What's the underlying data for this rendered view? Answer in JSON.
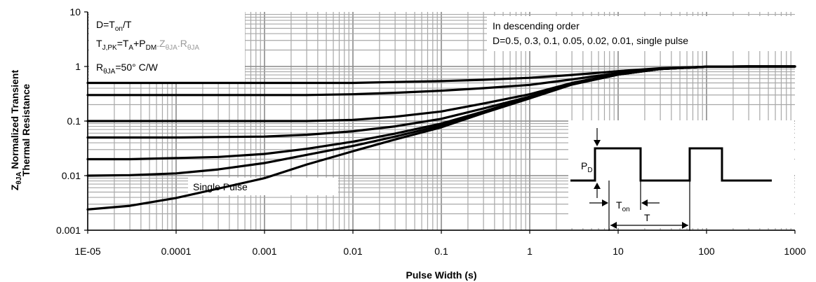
{
  "chart_data": {
    "type": "line",
    "xscale": "log",
    "yscale": "log",
    "xlim": [
      1e-05,
      1000
    ],
    "ylim": [
      0.001,
      10
    ],
    "grid": true,
    "xlabel": "Pulse Width (s)",
    "ylabel_line1": "Normalized Transient",
    "ylabel_line2": "Thermal Resistance",
    "ylabel_prefix": "Z",
    "ylabel_prefix_sub": "θJA",
    "x_tick_labels": [
      "1E-05",
      "0.0001",
      "0.001",
      "0.01",
      "0.1",
      "1",
      "10",
      "100",
      "1000"
    ],
    "y_tick_labels": [
      "0.001",
      "0.01",
      "0.1",
      "1",
      "10"
    ],
    "series_x": [
      1e-05,
      3e-05,
      0.0001,
      0.0003,
      0.001,
      0.003,
      0.01,
      0.03,
      0.1,
      0.3,
      1,
      3,
      10,
      30,
      100,
      300,
      1000
    ],
    "series": [
      {
        "values": [
          0.5,
          0.5,
          0.5,
          0.5,
          0.5,
          0.5,
          0.5,
          0.52,
          0.54,
          0.57,
          0.62,
          0.7,
          0.82,
          0.93,
          0.99,
          1.0,
          1.0
        ]
      },
      {
        "values": [
          0.3,
          0.3,
          0.3,
          0.3,
          0.3,
          0.3,
          0.31,
          0.33,
          0.36,
          0.4,
          0.46,
          0.58,
          0.76,
          0.91,
          0.99,
          1.0,
          1.0
        ]
      },
      {
        "values": [
          0.1,
          0.1,
          0.1,
          0.1,
          0.1,
          0.1,
          0.105,
          0.12,
          0.15,
          0.21,
          0.31,
          0.5,
          0.73,
          0.9,
          0.99,
          1.0,
          1.0
        ]
      },
      {
        "values": [
          0.05,
          0.05,
          0.05,
          0.051,
          0.052,
          0.056,
          0.065,
          0.08,
          0.11,
          0.17,
          0.28,
          0.48,
          0.72,
          0.9,
          0.99,
          1.0,
          1.0
        ]
      },
      {
        "values": [
          0.02,
          0.02,
          0.021,
          0.022,
          0.025,
          0.031,
          0.042,
          0.059,
          0.09,
          0.15,
          0.27,
          0.47,
          0.71,
          0.9,
          0.99,
          1.0,
          1.0
        ]
      },
      {
        "values": [
          0.01,
          0.0102,
          0.011,
          0.013,
          0.017,
          0.024,
          0.035,
          0.052,
          0.083,
          0.145,
          0.265,
          0.47,
          0.71,
          0.9,
          0.99,
          1.0,
          1.0
        ]
      },
      {
        "values": [
          0.0024,
          0.0028,
          0.0039,
          0.0058,
          0.009,
          0.016,
          0.028,
          0.046,
          0.077,
          0.14,
          0.26,
          0.465,
          0.71,
          0.9,
          0.99,
          1.0,
          1.0
        ]
      }
    ],
    "annotations": {
      "formula": {
        "d_main": "D=T",
        "d_sub": "on",
        "d_tail": "/T",
        "t_main": "T",
        "t_sub": "J,PK",
        "t_eq": "=T",
        "t_a": "A",
        "t_plus": "+P",
        "t_dm": "DM",
        "t_gray1": ".Z",
        "t_gray1_sub": "θJA",
        "t_gray2": ".R",
        "t_gray2_sub": "θJA",
        "r_main": "R",
        "r_sub": "θJA",
        "r_tail": "=50° C/W"
      },
      "order_line1": "In descending order",
      "order_line2": "D=0.5, 0.3, 0.1, 0.05, 0.02, 0.01, single pulse",
      "single_pulse": "Single Pulse",
      "waveform": {
        "pd_main": "P",
        "pd_sub": "D",
        "ton_main": "T",
        "ton_sub": "on",
        "t_label": "T"
      }
    }
  }
}
